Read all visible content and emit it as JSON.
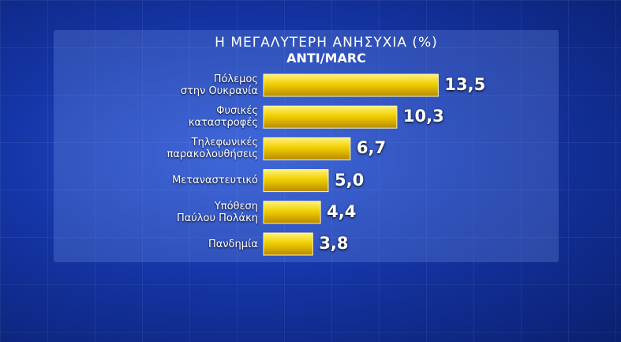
{
  "chart_data": {
    "type": "bar",
    "orientation": "horizontal",
    "title": "Η ΜΕΓΑΛΥΤΕΡΗ ΑΝΗΣΥΧΙΑ (%)",
    "subtitle": "ANTI/MARC",
    "categories": [
      "Πόλεμος\nστην Ουκρανία",
      "Φυσικές\nκαταστροφές",
      "Τηλεφωνικές\nπαρακολουθήσεις",
      "Μεταναστευτικό",
      "Υπόθεση\nΠαύλου Πολάκη",
      "Πανδημία"
    ],
    "values": [
      13.5,
      10.3,
      6.7,
      5.0,
      4.4,
      3.8
    ],
    "value_labels": [
      "13,5",
      "10,3",
      "6,7",
      "5,0",
      "4,4",
      "3,8"
    ],
    "color": "#f0cf00"
  }
}
